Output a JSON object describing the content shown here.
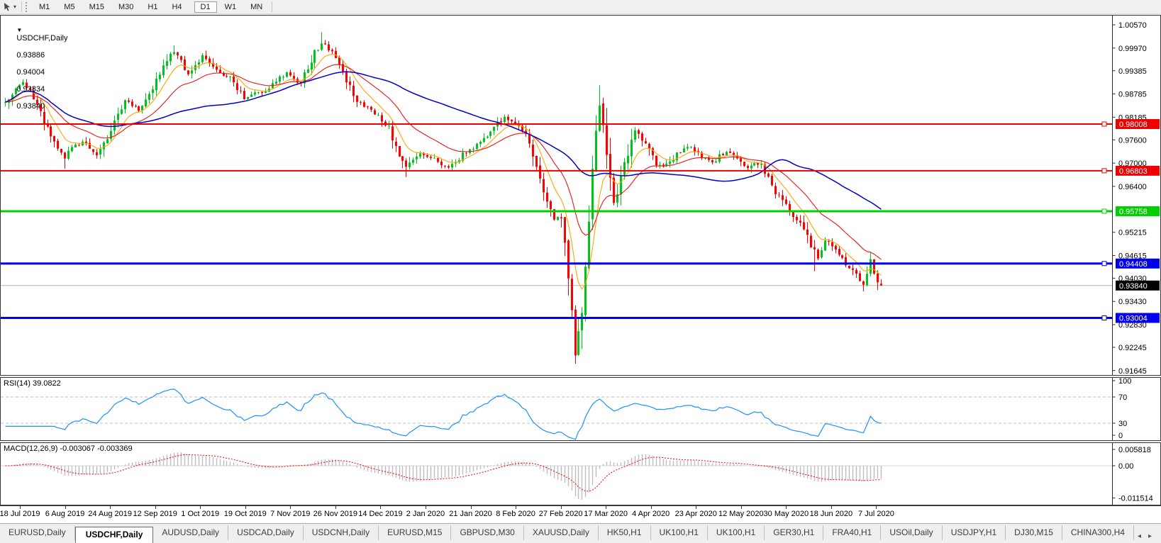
{
  "toolbar": {
    "tool_icon": "chart-cursor-tool",
    "timeframes": [
      {
        "label": "M1",
        "active": false
      },
      {
        "label": "M5",
        "active": false
      },
      {
        "label": "M15",
        "active": false
      },
      {
        "label": "M30",
        "active": false
      },
      {
        "label": "H1",
        "active": false
      },
      {
        "label": "H4",
        "active": false
      },
      {
        "label": "D1",
        "active": true
      },
      {
        "label": "W1",
        "active": false
      },
      {
        "label": "MN",
        "active": false
      }
    ]
  },
  "chart": {
    "title": "USDCHF,Daily",
    "collapse_glyph": "▼",
    "ohlc": {
      "open": "0.93886",
      "high": "0.94004",
      "low": "0.93834",
      "close": "0.93840"
    },
    "price_axis": {
      "ticks": [
        [
          "1.00570",
          1.0057
        ],
        [
          "0.99970",
          0.9997
        ],
        [
          "0.99385",
          0.99385
        ],
        [
          "0.98785",
          0.98785
        ],
        [
          "0.98185",
          0.98185
        ],
        [
          "0.97600",
          0.976
        ],
        [
          "0.97000",
          0.97
        ],
        [
          "0.96400",
          0.964
        ],
        [
          "0.95215",
          0.95215
        ],
        [
          "0.94615",
          0.94615
        ],
        [
          "0.94030",
          0.9403
        ],
        [
          "0.93430",
          0.9343
        ],
        [
          "0.92830",
          0.9283
        ],
        [
          "0.92245",
          0.92245
        ],
        [
          "0.91645",
          0.91645
        ]
      ]
    },
    "levels": [
      {
        "label": "0.98008",
        "value": 0.98008,
        "color": "#ee0000",
        "width": 2
      },
      {
        "label": "0.96803",
        "value": 0.96803,
        "color": "#ee0000",
        "width": 2
      },
      {
        "label": "0.95758",
        "value": 0.95758,
        "color": "#00d000",
        "width": 3
      },
      {
        "label": "0.94408",
        "value": 0.94408,
        "color": "#0000ee",
        "width": 3
      },
      {
        "label": "0.93004",
        "value": 0.93004,
        "color": "#0000ee",
        "width": 3
      }
    ],
    "current_price": {
      "label": "0.93840",
      "value": 0.9384,
      "line_color": "#b4b4b4",
      "box_color": "#000000"
    },
    "colors": {
      "bull": "#00c41e",
      "bear": "#fe0000",
      "ma_fast": "#ffa500",
      "ma_mid": "#f01414",
      "ma_slow": "#0000cc"
    },
    "candle_count": 250,
    "price_anchors": [
      [
        0,
        0.9858
      ],
      [
        3,
        0.9896
      ],
      [
        5,
        0.9912
      ],
      [
        7,
        0.9884
      ],
      [
        9,
        0.9846
      ],
      [
        12,
        0.979
      ],
      [
        15,
        0.9737
      ],
      [
        17,
        0.9713
      ],
      [
        19,
        0.9742
      ],
      [
        22,
        0.9753
      ],
      [
        24,
        0.9737
      ],
      [
        26,
        0.9722
      ],
      [
        28,
        0.975
      ],
      [
        30,
        0.9789
      ],
      [
        32,
        0.9823
      ],
      [
        34,
        0.9866
      ],
      [
        36,
        0.9851
      ],
      [
        38,
        0.9836
      ],
      [
        40,
        0.9871
      ],
      [
        42,
        0.9896
      ],
      [
        44,
        0.9931
      ],
      [
        46,
        0.9963
      ],
      [
        48,
        0.9989
      ],
      [
        50,
        0.9961
      ],
      [
        52,
        0.9931
      ],
      [
        54,
        0.9956
      ],
      [
        56,
        0.9976
      ],
      [
        58,
        0.9959
      ],
      [
        60,
        0.9941
      ],
      [
        62,
        0.9929
      ],
      [
        64,
        0.9919
      ],
      [
        66,
        0.9891
      ],
      [
        68,
        0.9869
      ],
      [
        71,
        0.9879
      ],
      [
        74,
        0.9883
      ],
      [
        76,
        0.9901
      ],
      [
        78,
        0.9919
      ],
      [
        80,
        0.9934
      ],
      [
        82,
        0.9919
      ],
      [
        84,
        0.9906
      ],
      [
        86,
        0.9946
      ],
      [
        88,
        0.9986
      ],
      [
        90,
        1.0009
      ],
      [
        92,
        0.9996
      ],
      [
        94,
        0.9973
      ],
      [
        96,
        0.9931
      ],
      [
        98,
        0.9893
      ],
      [
        100,
        0.9859
      ],
      [
        103,
        0.9841
      ],
      [
        106,
        0.9821
      ],
      [
        109,
        0.9789
      ],
      [
        111,
        0.9741
      ],
      [
        113,
        0.9701
      ],
      [
        114,
        0.9689
      ],
      [
        116,
        0.9711
      ],
      [
        118,
        0.9727
      ],
      [
        120,
        0.9719
      ],
      [
        122,
        0.9709
      ],
      [
        124,
        0.9696
      ],
      [
        126,
        0.9687
      ],
      [
        128,
        0.9703
      ],
      [
        130,
        0.9723
      ],
      [
        132,
        0.9736
      ],
      [
        134,
        0.9746
      ],
      [
        136,
        0.9763
      ],
      [
        138,
        0.9781
      ],
      [
        140,
        0.9801
      ],
      [
        142,
        0.9818
      ],
      [
        144,
        0.9809
      ],
      [
        146,
        0.9793
      ],
      [
        148,
        0.9771
      ],
      [
        150,
        0.9719
      ],
      [
        152,
        0.9656
      ],
      [
        154,
        0.9591
      ],
      [
        156,
        0.9557
      ],
      [
        158,
        0.9563
      ],
      [
        159,
        0.9501
      ],
      [
        160,
        0.9421
      ],
      [
        161,
        0.9301
      ],
      [
        162,
        0.9211
      ],
      [
        163,
        0.9253
      ],
      [
        164,
        0.9331
      ],
      [
        165,
        0.9421
      ],
      [
        166,
        0.9561
      ],
      [
        167,
        0.9681
      ],
      [
        168,
        0.9791
      ],
      [
        169,
        0.9851
      ],
      [
        170,
        0.9801
      ],
      [
        171,
        0.9706
      ],
      [
        172,
        0.9651
      ],
      [
        173,
        0.9601
      ],
      [
        174,
        0.9629
      ],
      [
        175,
        0.9656
      ],
      [
        176,
        0.9691
      ],
      [
        177,
        0.9721
      ],
      [
        178,
        0.9753
      ],
      [
        179,
        0.9779
      ],
      [
        181,
        0.9761
      ],
      [
        183,
        0.9736
      ],
      [
        185,
        0.9701
      ],
      [
        187,
        0.9689
      ],
      [
        189,
        0.9701
      ],
      [
        191,
        0.9723
      ],
      [
        193,
        0.9734
      ],
      [
        195,
        0.9743
      ],
      [
        197,
        0.9727
      ],
      [
        199,
        0.9709
      ],
      [
        201,
        0.9701
      ],
      [
        203,
        0.9719
      ],
      [
        205,
        0.9729
      ],
      [
        207,
        0.9717
      ],
      [
        209,
        0.9701
      ],
      [
        211,
        0.9689
      ],
      [
        213,
        0.9701
      ],
      [
        215,
        0.9693
      ],
      [
        217,
        0.9661
      ],
      [
        219,
        0.9626
      ],
      [
        221,
        0.9601
      ],
      [
        223,
        0.9577
      ],
      [
        225,
        0.9553
      ],
      [
        227,
        0.9531
      ],
      [
        229,
        0.9491
      ],
      [
        230,
        0.9473
      ],
      [
        231,
        0.9456
      ],
      [
        232,
        0.9479
      ],
      [
        233,
        0.9503
      ],
      [
        235,
        0.9481
      ],
      [
        237,
        0.9463
      ],
      [
        239,
        0.9441
      ],
      [
        241,
        0.9423
      ],
      [
        243,
        0.9401
      ],
      [
        244,
        0.9389
      ],
      [
        245,
        0.9409
      ],
      [
        246,
        0.9449
      ],
      [
        247,
        0.9426
      ],
      [
        248,
        0.9399
      ],
      [
        249,
        0.9384
      ]
    ],
    "wick_extremes": [
      [
        17,
        "l",
        0.9686
      ],
      [
        48,
        "h",
        1.0004
      ],
      [
        90,
        "h",
        1.0038
      ],
      [
        114,
        "l",
        0.9664
      ],
      [
        162,
        "l",
        0.9186
      ],
      [
        169,
        "h",
        0.9901
      ],
      [
        230,
        "l",
        0.9421
      ],
      [
        244,
        "l",
        0.9369
      ],
      [
        246,
        "h",
        0.9469
      ]
    ],
    "date_axis": [
      "18 Jul 2019",
      "6 Aug 2019",
      "24 Aug 2019",
      "12 Sep 2019",
      "1 Oct 2019",
      "19 Oct 2019",
      "7 Nov 2019",
      "26 Nov 2019",
      "14 Dec 2019",
      "2 Jan 2020",
      "21 Jan 2020",
      "8 Feb 2020",
      "27 Feb 2020",
      "17 Mar 2020",
      "4 Apr 2020",
      "23 Apr 2020",
      "12 May 2020",
      "30 May 2020",
      "18 Jun 2020",
      "7 Jul 2020"
    ]
  },
  "rsi": {
    "header": "RSI(14) 39.0822",
    "period": 14,
    "last_value": "39.0822",
    "color": "#1e90ff",
    "axis": [
      [
        "100",
        100
      ],
      [
        "70",
        70
      ],
      [
        "30",
        30
      ],
      [
        "0",
        0
      ]
    ],
    "dashed_levels": [
      70,
      30
    ]
  },
  "macd": {
    "header": "MACD(12,26,9) -0.003067 -0.003369",
    "params": "12,26,9",
    "macd_value": "-0.003067",
    "signal_value": "-0.003369",
    "hist_color": "#bdbdbd",
    "signal_color": "#fe0000",
    "axis": [
      [
        "0.005818",
        0.005818
      ],
      [
        "0.00",
        0
      ],
      [
        "-0.011514",
        -0.011514
      ]
    ]
  },
  "tabs": [
    {
      "label": "EURUSD,Daily",
      "active": false
    },
    {
      "label": "USDCHF,Daily",
      "active": true
    },
    {
      "label": "AUDUSD,Daily",
      "active": false
    },
    {
      "label": "USDCAD,Daily",
      "active": false
    },
    {
      "label": "USDCNH,Daily",
      "active": false
    },
    {
      "label": "EURUSD,M15",
      "active": false
    },
    {
      "label": "GBPUSD,M30",
      "active": false
    },
    {
      "label": "XAUUSD,Daily",
      "active": false
    },
    {
      "label": "HK50,H1",
      "active": false
    },
    {
      "label": "UK100,H1",
      "active": false
    },
    {
      "label": "UK100,H1",
      "active": false
    },
    {
      "label": "GER30,H1",
      "active": false
    },
    {
      "label": "FRA40,H1",
      "active": false
    },
    {
      "label": "USOil,Daily",
      "active": false
    },
    {
      "label": "USDJPY,H1",
      "active": false
    },
    {
      "label": "DJ30,M15",
      "active": false
    },
    {
      "label": "CHINA300,H4",
      "active": false
    }
  ],
  "tab_scroll": {
    "left": "◂",
    "right": "▸"
  }
}
